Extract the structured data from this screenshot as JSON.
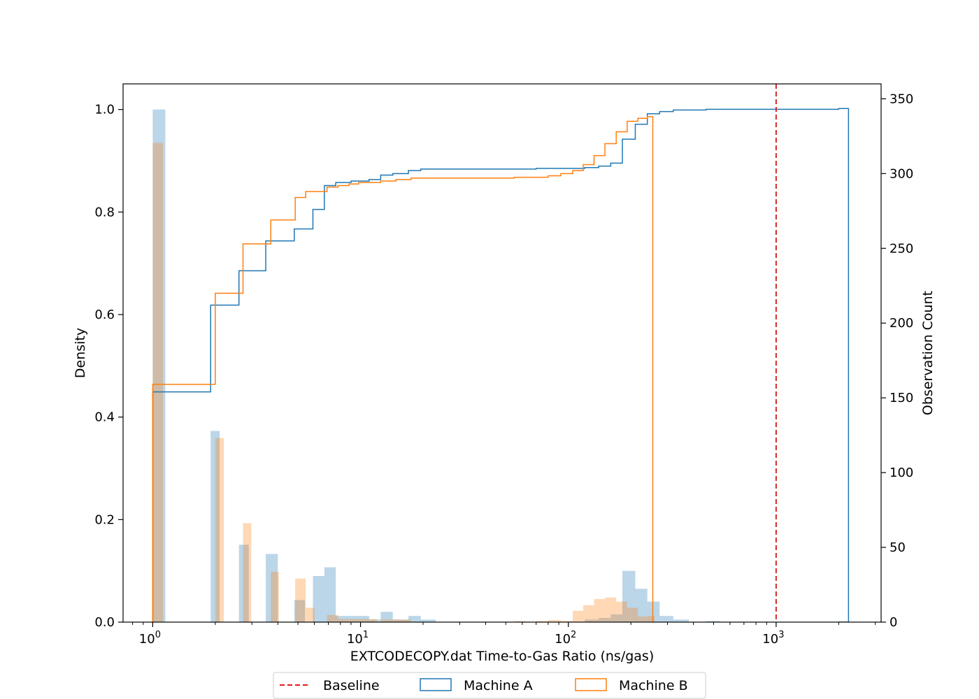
{
  "chart_data": {
    "type": "bar",
    "title": "",
    "xlabel": "EXTCODECOPY.dat Time-to-Gas Ratio (ns/gas)",
    "ylabel_left": "Density",
    "ylabel_right": "Observation Count",
    "xscale": "log",
    "xlim": [
      0.72,
      3200
    ],
    "ylim_left": [
      0,
      1.05
    ],
    "ylim_right": [
      0,
      360
    ],
    "x_ticks": [
      {
        "base": "10",
        "exp": "0",
        "value": 1
      },
      {
        "base": "10",
        "exp": "1",
        "value": 10
      },
      {
        "base": "10",
        "exp": "2",
        "value": 100
      },
      {
        "base": "10",
        "exp": "3",
        "value": 1000
      }
    ],
    "y_ticks_left": [
      "0.0",
      "0.2",
      "0.4",
      "0.6",
      "0.8",
      "1.0"
    ],
    "y_ticks_right": [
      "0",
      "50",
      "100",
      "150",
      "200",
      "250",
      "300",
      "350"
    ],
    "grid": false,
    "legend_position": "bottom-center",
    "legend": [
      {
        "name": "Baseline",
        "style": "dashed-line",
        "color": "#e41a1c"
      },
      {
        "name": "Machine A",
        "style": "box",
        "color": "#1f77b4"
      },
      {
        "name": "Machine B",
        "style": "box",
        "color": "#ff7f0e"
      }
    ],
    "baseline": {
      "x": 1000,
      "color": "#d62728"
    },
    "histogram_bars": [
      {
        "name": "Machine A",
        "color": "#1f77b4",
        "opacity": 0.3,
        "bins": [
          {
            "x0": 1.0,
            "x1": 1.15,
            "density": 1.0
          },
          {
            "x0": 1.9,
            "x1": 2.1,
            "density": 0.373
          },
          {
            "x0": 2.6,
            "x1": 2.9,
            "density": 0.151
          },
          {
            "x0": 3.5,
            "x1": 4.0,
            "density": 0.133
          },
          {
            "x0": 4.8,
            "x1": 5.4,
            "density": 0.043
          },
          {
            "x0": 5.9,
            "x1": 6.7,
            "density": 0.09
          },
          {
            "x0": 6.7,
            "x1": 7.6,
            "density": 0.107
          },
          {
            "x0": 7.6,
            "x1": 11.0,
            "density": 0.012
          },
          {
            "x0": 11.0,
            "x1": 12.5,
            "density": 0.005
          },
          {
            "x0": 12.5,
            "x1": 14.3,
            "density": 0.02
          },
          {
            "x0": 14.3,
            "x1": 17.0,
            "density": 0.005
          },
          {
            "x0": 17.0,
            "x1": 19.5,
            "density": 0.012
          },
          {
            "x0": 19.5,
            "x1": 23.0,
            "density": 0.005
          },
          {
            "x0": 120,
            "x1": 140,
            "density": 0.005
          },
          {
            "x0": 140,
            "x1": 160,
            "density": 0.008
          },
          {
            "x0": 160,
            "x1": 182,
            "density": 0.015
          },
          {
            "x0": 182,
            "x1": 210,
            "density": 0.1
          },
          {
            "x0": 210,
            "x1": 240,
            "density": 0.065
          },
          {
            "x0": 240,
            "x1": 275,
            "density": 0.04
          },
          {
            "x0": 275,
            "x1": 320,
            "density": 0.012
          },
          {
            "x0": 320,
            "x1": 380,
            "density": 0.005
          },
          {
            "x0": 460,
            "x1": 540,
            "density": 0.002
          },
          {
            "x0": 2000,
            "x1": 2230,
            "density": 0.002
          }
        ]
      },
      {
        "name": "Machine B",
        "color": "#ff7f0e",
        "opacity": 0.3,
        "bins": [
          {
            "x0": 1.0,
            "x1": 1.12,
            "density": 0.935
          },
          {
            "x0": 2.0,
            "x1": 2.2,
            "density": 0.359
          },
          {
            "x0": 2.72,
            "x1": 2.98,
            "density": 0.193
          },
          {
            "x0": 3.7,
            "x1": 4.05,
            "density": 0.098
          },
          {
            "x0": 4.85,
            "x1": 5.45,
            "density": 0.085
          },
          {
            "x0": 5.45,
            "x1": 6.0,
            "density": 0.028
          },
          {
            "x0": 6.9,
            "x1": 7.8,
            "density": 0.014
          },
          {
            "x0": 7.8,
            "x1": 12.0,
            "density": 0.006
          },
          {
            "x0": 12.5,
            "x1": 14.8,
            "density": 0.005
          },
          {
            "x0": 14.8,
            "x1": 17.5,
            "density": 0.005
          },
          {
            "x0": 55,
            "x1": 62,
            "density": 0.002
          },
          {
            "x0": 70,
            "x1": 80,
            "density": 0.002
          },
          {
            "x0": 80,
            "x1": 92,
            "density": 0.004
          },
          {
            "x0": 92,
            "x1": 105,
            "density": 0.002
          },
          {
            "x0": 105,
            "x1": 118,
            "density": 0.022
          },
          {
            "x0": 118,
            "x1": 133,
            "density": 0.033
          },
          {
            "x0": 133,
            "x1": 150,
            "density": 0.045
          },
          {
            "x0": 150,
            "x1": 170,
            "density": 0.048
          },
          {
            "x0": 170,
            "x1": 192,
            "density": 0.04
          },
          {
            "x0": 192,
            "x1": 216,
            "density": 0.028
          },
          {
            "x0": 216,
            "x1": 240,
            "density": 0.011
          },
          {
            "x0": 240,
            "x1": 260,
            "density": 0.012
          }
        ]
      }
    ],
    "cumulative_count_steps": [
      {
        "name": "Machine A",
        "color": "#1f77b4",
        "x_end": 2230,
        "points": [
          [
            1.0,
            0
          ],
          [
            1.0,
            154
          ],
          [
            1.9,
            154
          ],
          [
            1.9,
            212
          ],
          [
            2.6,
            212
          ],
          [
            2.6,
            235
          ],
          [
            3.5,
            235
          ],
          [
            3.5,
            255
          ],
          [
            4.8,
            255
          ],
          [
            4.8,
            263
          ],
          [
            5.9,
            263
          ],
          [
            5.9,
            276
          ],
          [
            6.7,
            276
          ],
          [
            6.7,
            292
          ],
          [
            7.6,
            292
          ],
          [
            7.6,
            294
          ],
          [
            9.0,
            294
          ],
          [
            9.0,
            295
          ],
          [
            11.0,
            295
          ],
          [
            11.0,
            296
          ],
          [
            12.5,
            296
          ],
          [
            12.5,
            299
          ],
          [
            14.3,
            299
          ],
          [
            14.3,
            300
          ],
          [
            17.0,
            300
          ],
          [
            17.0,
            302
          ],
          [
            19.5,
            302
          ],
          [
            19.5,
            303
          ],
          [
            70,
            303
          ],
          [
            70,
            303.5
          ],
          [
            120,
            303.5
          ],
          [
            120,
            304
          ],
          [
            140,
            304
          ],
          [
            140,
            305
          ],
          [
            160,
            305
          ],
          [
            160,
            307
          ],
          [
            182,
            307
          ],
          [
            182,
            323
          ],
          [
            210,
            323
          ],
          [
            210,
            333
          ],
          [
            240,
            333
          ],
          [
            240,
            340
          ],
          [
            275,
            340
          ],
          [
            275,
            341.5
          ],
          [
            320,
            341.5
          ],
          [
            320,
            342.5
          ],
          [
            460,
            342.5
          ],
          [
            460,
            343
          ],
          [
            2000,
            343
          ],
          [
            2000,
            343.5
          ],
          [
            2230,
            343.5
          ],
          [
            2230,
            0
          ]
        ]
      },
      {
        "name": "Machine B",
        "color": "#ff7f0e",
        "x_end": 255,
        "points": [
          [
            1.0,
            0
          ],
          [
            1.0,
            159
          ],
          [
            2.0,
            159
          ],
          [
            2.0,
            220
          ],
          [
            2.72,
            220
          ],
          [
            2.72,
            253
          ],
          [
            3.7,
            253
          ],
          [
            3.7,
            269
          ],
          [
            4.85,
            269
          ],
          [
            4.85,
            284
          ],
          [
            5.45,
            284
          ],
          [
            5.45,
            288
          ],
          [
            6.9,
            288
          ],
          [
            6.9,
            291
          ],
          [
            7.8,
            291
          ],
          [
            7.8,
            292
          ],
          [
            8.8,
            292
          ],
          [
            8.8,
            293
          ],
          [
            9.8,
            293
          ],
          [
            9.8,
            294
          ],
          [
            12.5,
            294
          ],
          [
            12.5,
            295
          ],
          [
            14.8,
            295
          ],
          [
            14.8,
            296
          ],
          [
            17.5,
            296
          ],
          [
            17.5,
            297
          ],
          [
            55,
            297
          ],
          [
            55,
            297.5
          ],
          [
            80,
            297.5
          ],
          [
            80,
            298.5
          ],
          [
            92,
            298.5
          ],
          [
            92,
            300
          ],
          [
            105,
            300
          ],
          [
            105,
            302
          ],
          [
            118,
            302
          ],
          [
            118,
            306
          ],
          [
            133,
            306
          ],
          [
            133,
            312
          ],
          [
            150,
            312
          ],
          [
            150,
            320
          ],
          [
            170,
            320
          ],
          [
            170,
            328
          ],
          [
            192,
            328
          ],
          [
            192,
            335
          ],
          [
            216,
            335
          ],
          [
            216,
            337
          ],
          [
            240,
            337
          ],
          [
            240,
            338
          ],
          [
            255,
            338
          ],
          [
            255,
            0
          ]
        ]
      }
    ]
  }
}
